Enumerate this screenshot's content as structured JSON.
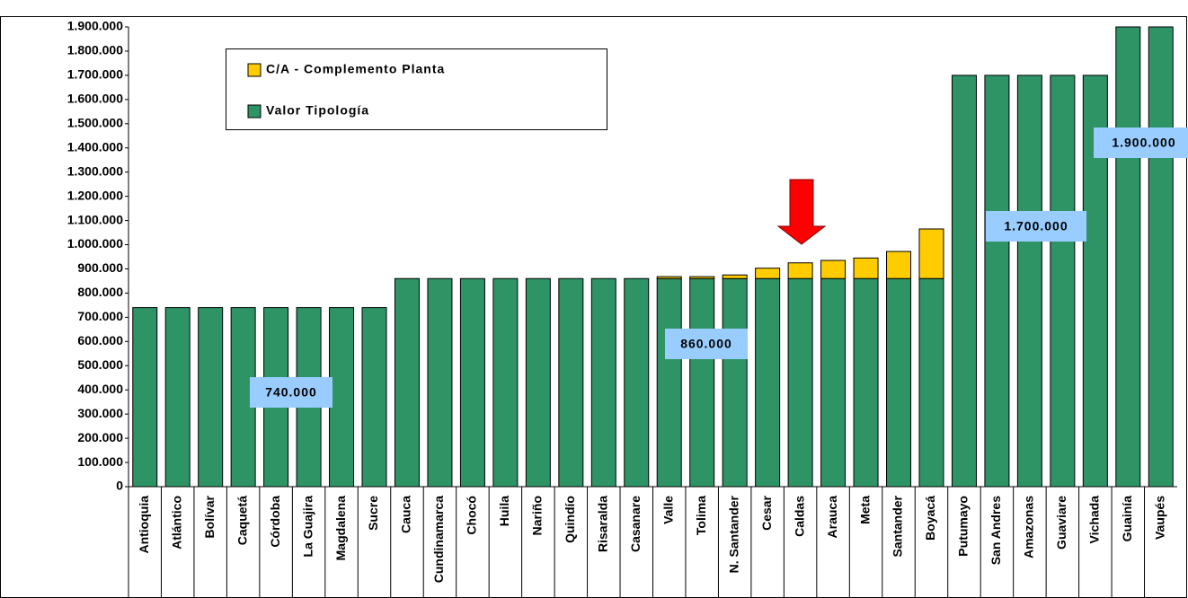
{
  "chart_data": {
    "type": "stacked_bar",
    "categories": [
      "Antioquia",
      "Atlántico",
      "Bolívar",
      "Caquetá",
      "Córdoba",
      "La Guajira",
      "Magdalena",
      "Sucre",
      "Cauca",
      "Cundinamarca",
      "Chocó",
      "Huila",
      "Nariño",
      "Quindío",
      "Risaralda",
      "Casanare",
      "Valle",
      "Tolima",
      "N. Santander",
      "Cesar",
      "Caldas",
      "Arauca",
      "Meta",
      "Santander",
      "Boyacá",
      "Putumayo",
      "San Andres",
      "Amazonas",
      "Guaviare",
      "Vichada",
      "Guainía",
      "Vaupés"
    ],
    "series": [
      {
        "name": "Valor Tipología",
        "color": "#2e9466",
        "values": [
          740000,
          740000,
          740000,
          740000,
          740000,
          740000,
          740000,
          740000,
          860000,
          860000,
          860000,
          860000,
          860000,
          860000,
          860000,
          860000,
          860000,
          860000,
          860000,
          860000,
          860000,
          860000,
          860000,
          860000,
          860000,
          1700000,
          1700000,
          1700000,
          1700000,
          1700000,
          1900000,
          1900000
        ]
      },
      {
        "name": "C/A - Complemento Planta",
        "color": "#ffcc00",
        "values": [
          0,
          0,
          0,
          0,
          0,
          0,
          0,
          0,
          0,
          0,
          0,
          0,
          0,
          0,
          0,
          0,
          8000,
          8000,
          15000,
          43000,
          65000,
          75000,
          85000,
          112000,
          205000,
          0,
          0,
          0,
          0,
          0,
          0,
          0
        ]
      }
    ],
    "ylim": [
      0,
      1900000
    ],
    "yticks": [
      0,
      {
        "value": 100000,
        "label": "100.000"
      },
      {
        "value": 200000,
        "label": "200.000"
      },
      {
        "value": 300000,
        "label": "300.000"
      },
      {
        "value": 400000,
        "label": "400.000"
      },
      {
        "value": 500000,
        "label": "500.000"
      },
      {
        "value": 600000,
        "label": "600.000"
      },
      {
        "value": 700000,
        "label": "700.000"
      },
      {
        "value": 800000,
        "label": "800.000"
      },
      {
        "value": 900000,
        "label": "900.000"
      },
      {
        "value": 1000000,
        "label": "1.000.000"
      },
      {
        "value": 1100000,
        "label": "1.100.000"
      },
      {
        "value": 1200000,
        "label": "1.200.000"
      },
      {
        "value": 1300000,
        "label": "1.300.000"
      },
      {
        "value": 1400000,
        "label": "1.400.000"
      },
      {
        "value": 1500000,
        "label": "1.500.000"
      },
      {
        "value": 1600000,
        "label": "1.600.000"
      },
      {
        "value": 1700000,
        "label": "1.700.000"
      },
      {
        "value": 1800000,
        "label": "1.800.000"
      },
      {
        "value": 1900000,
        "label": "1.900.000"
      }
    ],
    "annotations": [
      "740.000",
      "860.000",
      "1.700.000",
      "1.900.000"
    ],
    "legend_order": [
      1,
      0
    ]
  }
}
